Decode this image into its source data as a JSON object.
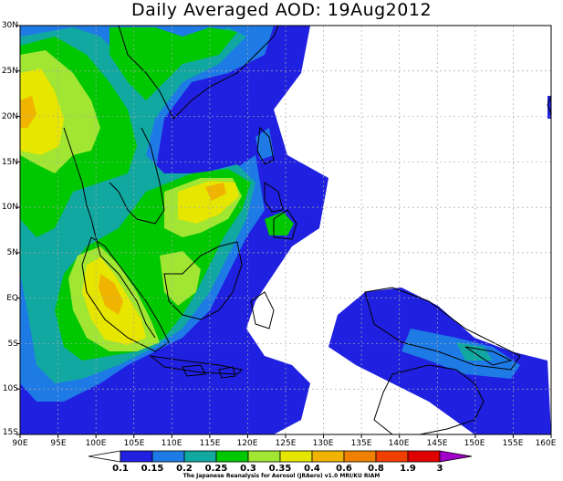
{
  "title": "Daily Averaged AOD: 19Aug2012",
  "credit": "The Japanese Reanalysis for Aerosol (JRAero) v1.0 MRI/KU RIAM",
  "axes": {
    "y_labels": [
      "30N",
      "25N",
      "20N",
      "15N",
      "10N",
      "5N",
      "EQ",
      "5S",
      "10S",
      "15S"
    ],
    "x_labels": [
      "90E",
      "95E",
      "100E",
      "105E",
      "110E",
      "115E",
      "120E",
      "125E",
      "130E",
      "135E",
      "140E",
      "145E",
      "150E",
      "155E",
      "160E"
    ]
  },
  "map_extent": {
    "lon": [
      90,
      160
    ],
    "lat": [
      -15,
      30
    ]
  },
  "colorbar": {
    "levels": [
      "0.1",
      "0.15",
      "0.2",
      "0.25",
      "0.3",
      "0.35",
      "0.4",
      "0.6",
      "0.8",
      "1.9",
      "3"
    ],
    "colors": [
      "#ffffff",
      "#2020e0",
      "#1e7be6",
      "#10a8a0",
      "#00c800",
      "#a0e632",
      "#e6e600",
      "#f0b400",
      "#f08000",
      "#f04000",
      "#e00000",
      "#a000c8"
    ]
  },
  "aod_colors": {
    "level_0_15": "#2020e0",
    "level_0_2": "#1e7be6",
    "level_0_25": "#10a8a0",
    "level_0_3": "#00c800",
    "level_0_35": "#a0e632",
    "level_0_4": "#e6e600",
    "level_0_6": "#f0b400"
  }
}
